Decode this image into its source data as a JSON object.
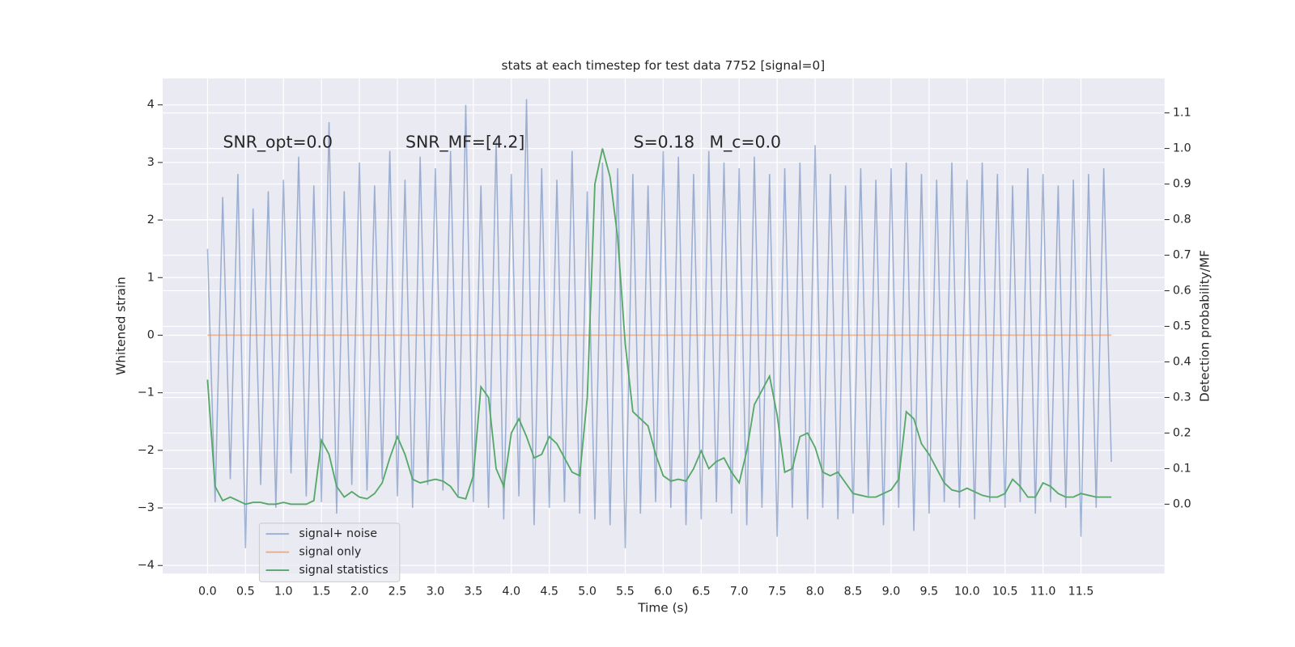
{
  "chart_data": {
    "type": "line",
    "title": "stats at each timestep for test data 7752 [signal=0]",
    "xlabel": "Time (s)",
    "ylabel": "Whitened strain",
    "y2label": "Detection probability/MF",
    "annotations": [
      "SNR_opt=0.0",
      "SNR_MF=[4.2]",
      "S=0.18",
      "M_c=0.0"
    ],
    "x": [
      0.0,
      0.1,
      0.2,
      0.3,
      0.4,
      0.5,
      0.6,
      0.7,
      0.8,
      0.9,
      1.0,
      1.1,
      1.2,
      1.3,
      1.4,
      1.5,
      1.6,
      1.7,
      1.8,
      1.9,
      2.0,
      2.1,
      2.2,
      2.3,
      2.4,
      2.5,
      2.6,
      2.7,
      2.8,
      2.9,
      3.0,
      3.1,
      3.2,
      3.3,
      3.4,
      3.5,
      3.6,
      3.7,
      3.8,
      3.9,
      4.0,
      4.1,
      4.2,
      4.3,
      4.4,
      4.5,
      4.6,
      4.7,
      4.8,
      4.9,
      5.0,
      5.1,
      5.2,
      5.3,
      5.4,
      5.5,
      5.6,
      5.7,
      5.8,
      5.9,
      6.0,
      6.1,
      6.2,
      6.3,
      6.4,
      6.5,
      6.6,
      6.7,
      6.8,
      6.9,
      7.0,
      7.1,
      7.2,
      7.3,
      7.4,
      7.5,
      7.6,
      7.7,
      7.8,
      7.9,
      8.0,
      8.1,
      8.2,
      8.3,
      8.4,
      8.5,
      8.6,
      8.7,
      8.8,
      8.9,
      9.0,
      9.1,
      9.2,
      9.3,
      9.4,
      9.5,
      9.6,
      9.7,
      9.8,
      9.9,
      10.0,
      10.1,
      10.2,
      10.3,
      10.4,
      10.5,
      10.6,
      10.7,
      10.8,
      10.9,
      11.0,
      11.1,
      11.2,
      11.3,
      11.4,
      11.5,
      11.6,
      11.7,
      11.8,
      11.9
    ],
    "series": [
      {
        "name": "signal+ noise",
        "color": "#4c72b0",
        "opacity": 0.5,
        "values": [
          1.5,
          -2.9,
          2.4,
          -2.5,
          2.8,
          -3.7,
          2.2,
          -2.6,
          2.5,
          -3.0,
          2.7,
          -2.4,
          3.1,
          -2.8,
          2.6,
          -2.9,
          3.7,
          -3.1,
          2.5,
          -2.6,
          3.0,
          -2.7,
          2.6,
          -2.5,
          3.2,
          -2.8,
          2.7,
          -3.0,
          3.1,
          -2.6,
          2.9,
          -2.7,
          3.2,
          -2.8,
          4.0,
          -2.9,
          2.6,
          -3.0,
          3.4,
          -3.2,
          2.8,
          -2.8,
          4.1,
          -3.3,
          2.9,
          -3.0,
          2.7,
          -2.9,
          3.2,
          -3.1,
          2.5,
          -3.2,
          3.0,
          -3.3,
          2.9,
          -3.7,
          2.8,
          -3.1,
          2.6,
          -2.9,
          3.2,
          -3.0,
          3.1,
          -3.3,
          2.8,
          -3.2,
          3.2,
          -2.9,
          3.0,
          -3.1,
          2.9,
          -3.3,
          3.1,
          -3.0,
          2.8,
          -3.5,
          2.9,
          -3.0,
          3.0,
          -3.2,
          3.3,
          -3.0,
          2.8,
          -3.2,
          2.6,
          -3.1,
          2.9,
          -2.8,
          2.7,
          -3.3,
          2.9,
          -3.0,
          3.0,
          -3.4,
          2.8,
          -3.1,
          2.7,
          -2.9,
          3.0,
          -3.0,
          2.7,
          -3.2,
          3.0,
          -2.9,
          2.8,
          -3.0,
          2.6,
          -2.9,
          2.9,
          -3.1,
          2.8,
          -2.9,
          2.6,
          -3.0,
          2.7,
          -3.5,
          2.8,
          -3.0,
          2.9,
          -2.2
        ]
      },
      {
        "name": "signal only",
        "color": "#dd8452",
        "opacity": 0.6,
        "values": [
          0,
          0,
          0,
          0,
          0,
          0,
          0,
          0,
          0,
          0,
          0,
          0,
          0,
          0,
          0,
          0,
          0,
          0,
          0,
          0,
          0,
          0,
          0,
          0,
          0,
          0,
          0,
          0,
          0,
          0,
          0,
          0,
          0,
          0,
          0,
          0,
          0,
          0,
          0,
          0,
          0,
          0,
          0,
          0,
          0,
          0,
          0,
          0,
          0,
          0,
          0,
          0,
          0,
          0,
          0,
          0,
          0,
          0,
          0,
          0,
          0,
          0,
          0,
          0,
          0,
          0,
          0,
          0,
          0,
          0,
          0,
          0,
          0,
          0,
          0,
          0,
          0,
          0,
          0,
          0,
          0,
          0,
          0,
          0,
          0,
          0,
          0,
          0,
          0,
          0,
          0,
          0,
          0,
          0,
          0,
          0,
          0,
          0,
          0,
          0,
          0,
          0,
          0,
          0,
          0,
          0,
          0,
          0,
          0,
          0,
          0,
          0,
          0,
          0,
          0,
          0,
          0,
          0,
          0,
          0
        ]
      },
      {
        "name": "signal statistics",
        "color": "#55a868",
        "opacity": 1,
        "axis": "y2",
        "values": [
          0.35,
          0.05,
          0.01,
          0.02,
          0.01,
          0,
          0.005,
          0.005,
          0,
          0,
          0.005,
          0,
          0,
          0,
          0.01,
          0.18,
          0.14,
          0.05,
          0.02,
          0.035,
          0.02,
          0.015,
          0.03,
          0.06,
          0.13,
          0.19,
          0.14,
          0.07,
          0.06,
          0.065,
          0.07,
          0.065,
          0.05,
          0.02,
          0.015,
          0.08,
          0.33,
          0.3,
          0.1,
          0.05,
          0.2,
          0.24,
          0.19,
          0.13,
          0.14,
          0.19,
          0.17,
          0.13,
          0.09,
          0.08,
          0.3,
          0.9,
          1.0,
          0.92,
          0.75,
          0.45,
          0.26,
          0.24,
          0.22,
          0.14,
          0.08,
          0.065,
          0.07,
          0.065,
          0.1,
          0.15,
          0.1,
          0.12,
          0.13,
          0.09,
          0.06,
          0.15,
          0.28,
          0.32,
          0.36,
          0.25,
          0.09,
          0.1,
          0.19,
          0.2,
          0.16,
          0.09,
          0.08,
          0.09,
          0.06,
          0.03,
          0.025,
          0.02,
          0.02,
          0.03,
          0.04,
          0.07,
          0.26,
          0.24,
          0.17,
          0.14,
          0.1,
          0.06,
          0.04,
          0.035,
          0.045,
          0.035,
          0.025,
          0.02,
          0.02,
          0.03,
          0.07,
          0.05,
          0.02,
          0.02,
          0.06,
          0.05,
          0.03,
          0.02,
          0.02,
          0.03,
          0.025,
          0.02,
          0.02,
          0.02
        ]
      }
    ],
    "xlim": [
      -0.59,
      12.6
    ],
    "ylim": [
      -4.14,
      4.46
    ],
    "y2lim": [
      -0.195,
      1.197
    ],
    "xticks": [
      {
        "value": 0,
        "label": "0.0"
      },
      0.5,
      {
        "value": 1,
        "label": "1.0"
      },
      1.5,
      {
        "value": 2,
        "label": "2.0"
      },
      2.5,
      {
        "value": 3,
        "label": "3.0"
      },
      3.5,
      {
        "value": 4,
        "label": "4.0"
      },
      4.5,
      {
        "value": 5,
        "label": "5.0"
      },
      5.5,
      {
        "value": 6,
        "label": "6.0"
      },
      6.5,
      {
        "value": 7,
        "label": "7.0"
      },
      7.5,
      {
        "value": 8,
        "label": "8.0"
      },
      8.5,
      {
        "value": 9,
        "label": "9.0"
      },
      9.5,
      {
        "value": 10,
        "label": "10.0"
      },
      10.5,
      {
        "value": 11,
        "label": "11.0"
      },
      11.5
    ],
    "yticks": [
      {
        "value": -4,
        "label": "−4"
      },
      {
        "value": -3,
        "label": "−3"
      },
      {
        "value": -2,
        "label": "−2"
      },
      {
        "value": -1,
        "label": "−1"
      },
      0,
      1,
      2,
      3,
      4
    ],
    "y2ticks": [
      {
        "value": 0,
        "label": "0.0"
      },
      0.1,
      0.2,
      0.3,
      0.4,
      0.5,
      0.6,
      0.7,
      0.8,
      0.9,
      {
        "value": 1,
        "label": "1.0"
      },
      1.1
    ],
    "grid": true,
    "legend": "lower left",
    "background": "#eaeaf2"
  }
}
